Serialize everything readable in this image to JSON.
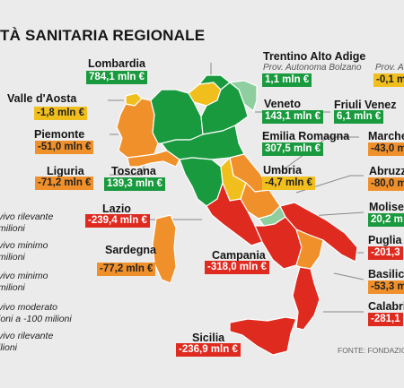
{
  "title": "TÀ SANITARIA REGIONALE",
  "legend": [
    "vivo rilevante\nmilioni",
    "vivo minimo\nmilioni",
    "vivo minimo\nmilioni",
    "vivo moderato\nioni a -100 milioni",
    "vivo rilevante\nilioni"
  ],
  "regions": {
    "lombardia": {
      "name": "Lombardia",
      "value": "784,1 mln €",
      "color": "green"
    },
    "trentino": {
      "name": "Trentino Alto Adige",
      "sub": "Prov. Autonoma Bolzano",
      "value": "1,1 mln €",
      "color": "green"
    },
    "trento": {
      "sub": "Prov. Au",
      "value": "-0,1 m",
      "color": "yellow"
    },
    "valle_aosta": {
      "name": "Valle d'Aosta",
      "value": "-1,8 mln €",
      "color": "yellow"
    },
    "veneto": {
      "name": "Veneto",
      "value": "143,1 mln €",
      "color": "green"
    },
    "friuli": {
      "name": "Friuli Venez",
      "value": "6,1 mln €",
      "color": "green"
    },
    "piemonte": {
      "name": "Piemonte",
      "value": "-51,0 mln €",
      "color": "orange"
    },
    "emilia": {
      "name": "Emilia Romagna",
      "value": "307,5 mln €",
      "color": "green"
    },
    "marche": {
      "name": "Marche",
      "value": "-43,0 m",
      "color": "orange"
    },
    "liguria": {
      "name": "Liguria",
      "value": "-71,2 mln €",
      "color": "orange"
    },
    "toscana": {
      "name": "Toscana",
      "value": "139,3 mln €",
      "color": "green"
    },
    "umbria": {
      "name": "Umbria",
      "value": "-4,7 mln €",
      "color": "yellow"
    },
    "abruzzo": {
      "name": "Abruzz",
      "value": "-80,0 m",
      "color": "orange"
    },
    "lazio": {
      "name": "Lazio",
      "value": "-239,4 mln €",
      "color": "red"
    },
    "molise": {
      "name": "Molise",
      "value": "20,2 m",
      "color": "green"
    },
    "sardegna": {
      "name": "Sardegna",
      "value": "-77,2 mln €",
      "color": "orange"
    },
    "campania": {
      "name": "Campania",
      "value": "-318,0 mln €",
      "color": "red"
    },
    "puglia": {
      "name": "Puglia",
      "value": "-201,3",
      "color": "red"
    },
    "basilicata": {
      "name": "Basilic",
      "value": "-53,3 m",
      "color": "orange"
    },
    "calabria": {
      "name": "Calabri",
      "value": "-281,1",
      "color": "red"
    },
    "sicilia": {
      "name": "Sicilia",
      "value": "-236,9 mln €",
      "color": "red"
    }
  },
  "source": "FONTE: FONDAZIO",
  "colors": {
    "green": "#1a9a3e",
    "yellow": "#f1bf1d",
    "orange": "#f0902b",
    "red": "#df2a20",
    "background": "#ebebeb"
  }
}
